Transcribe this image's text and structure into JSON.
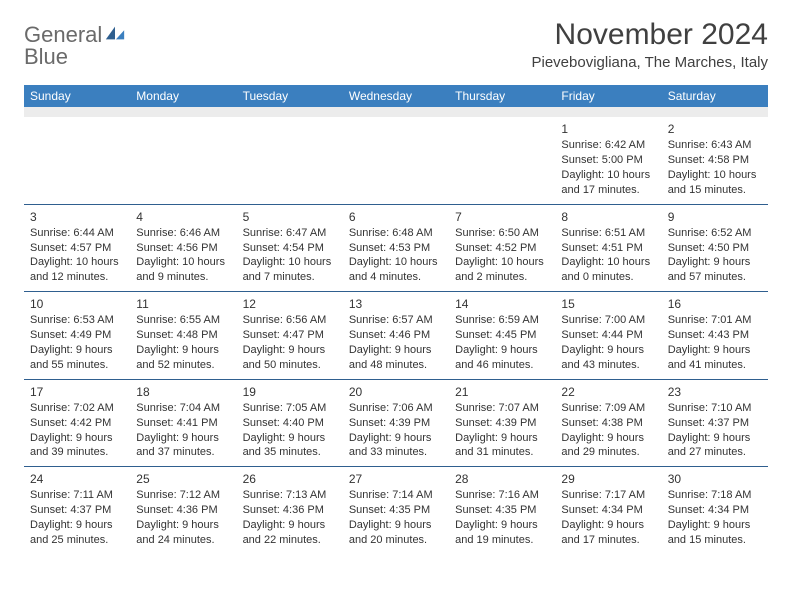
{
  "logo": {
    "text_general": "General",
    "text_blue": "Blue"
  },
  "title": "November 2024",
  "subtitle": "Pievebovigliana, The Marches, Italy",
  "colors": {
    "header_bg": "#3b7fbf",
    "header_text": "#ffffff",
    "cell_border": "#2f5f8f",
    "spacer_bg": "#ececec",
    "body_text": "#333333",
    "title_text": "#404040"
  },
  "day_headers": [
    "Sunday",
    "Monday",
    "Tuesday",
    "Wednesday",
    "Thursday",
    "Friday",
    "Saturday"
  ],
  "weeks": [
    [
      null,
      null,
      null,
      null,
      null,
      {
        "n": "1",
        "sunrise": "Sunrise: 6:42 AM",
        "sunset": "Sunset: 5:00 PM",
        "day1": "Daylight: 10 hours",
        "day2": "and 17 minutes."
      },
      {
        "n": "2",
        "sunrise": "Sunrise: 6:43 AM",
        "sunset": "Sunset: 4:58 PM",
        "day1": "Daylight: 10 hours",
        "day2": "and 15 minutes."
      }
    ],
    [
      {
        "n": "3",
        "sunrise": "Sunrise: 6:44 AM",
        "sunset": "Sunset: 4:57 PM",
        "day1": "Daylight: 10 hours",
        "day2": "and 12 minutes."
      },
      {
        "n": "4",
        "sunrise": "Sunrise: 6:46 AM",
        "sunset": "Sunset: 4:56 PM",
        "day1": "Daylight: 10 hours",
        "day2": "and 9 minutes."
      },
      {
        "n": "5",
        "sunrise": "Sunrise: 6:47 AM",
        "sunset": "Sunset: 4:54 PM",
        "day1": "Daylight: 10 hours",
        "day2": "and 7 minutes."
      },
      {
        "n": "6",
        "sunrise": "Sunrise: 6:48 AM",
        "sunset": "Sunset: 4:53 PM",
        "day1": "Daylight: 10 hours",
        "day2": "and 4 minutes."
      },
      {
        "n": "7",
        "sunrise": "Sunrise: 6:50 AM",
        "sunset": "Sunset: 4:52 PM",
        "day1": "Daylight: 10 hours",
        "day2": "and 2 minutes."
      },
      {
        "n": "8",
        "sunrise": "Sunrise: 6:51 AM",
        "sunset": "Sunset: 4:51 PM",
        "day1": "Daylight: 10 hours",
        "day2": "and 0 minutes."
      },
      {
        "n": "9",
        "sunrise": "Sunrise: 6:52 AM",
        "sunset": "Sunset: 4:50 PM",
        "day1": "Daylight: 9 hours",
        "day2": "and 57 minutes."
      }
    ],
    [
      {
        "n": "10",
        "sunrise": "Sunrise: 6:53 AM",
        "sunset": "Sunset: 4:49 PM",
        "day1": "Daylight: 9 hours",
        "day2": "and 55 minutes."
      },
      {
        "n": "11",
        "sunrise": "Sunrise: 6:55 AM",
        "sunset": "Sunset: 4:48 PM",
        "day1": "Daylight: 9 hours",
        "day2": "and 52 minutes."
      },
      {
        "n": "12",
        "sunrise": "Sunrise: 6:56 AM",
        "sunset": "Sunset: 4:47 PM",
        "day1": "Daylight: 9 hours",
        "day2": "and 50 minutes."
      },
      {
        "n": "13",
        "sunrise": "Sunrise: 6:57 AM",
        "sunset": "Sunset: 4:46 PM",
        "day1": "Daylight: 9 hours",
        "day2": "and 48 minutes."
      },
      {
        "n": "14",
        "sunrise": "Sunrise: 6:59 AM",
        "sunset": "Sunset: 4:45 PM",
        "day1": "Daylight: 9 hours",
        "day2": "and 46 minutes."
      },
      {
        "n": "15",
        "sunrise": "Sunrise: 7:00 AM",
        "sunset": "Sunset: 4:44 PM",
        "day1": "Daylight: 9 hours",
        "day2": "and 43 minutes."
      },
      {
        "n": "16",
        "sunrise": "Sunrise: 7:01 AM",
        "sunset": "Sunset: 4:43 PM",
        "day1": "Daylight: 9 hours",
        "day2": "and 41 minutes."
      }
    ],
    [
      {
        "n": "17",
        "sunrise": "Sunrise: 7:02 AM",
        "sunset": "Sunset: 4:42 PM",
        "day1": "Daylight: 9 hours",
        "day2": "and 39 minutes."
      },
      {
        "n": "18",
        "sunrise": "Sunrise: 7:04 AM",
        "sunset": "Sunset: 4:41 PM",
        "day1": "Daylight: 9 hours",
        "day2": "and 37 minutes."
      },
      {
        "n": "19",
        "sunrise": "Sunrise: 7:05 AM",
        "sunset": "Sunset: 4:40 PM",
        "day1": "Daylight: 9 hours",
        "day2": "and 35 minutes."
      },
      {
        "n": "20",
        "sunrise": "Sunrise: 7:06 AM",
        "sunset": "Sunset: 4:39 PM",
        "day1": "Daylight: 9 hours",
        "day2": "and 33 minutes."
      },
      {
        "n": "21",
        "sunrise": "Sunrise: 7:07 AM",
        "sunset": "Sunset: 4:39 PM",
        "day1": "Daylight: 9 hours",
        "day2": "and 31 minutes."
      },
      {
        "n": "22",
        "sunrise": "Sunrise: 7:09 AM",
        "sunset": "Sunset: 4:38 PM",
        "day1": "Daylight: 9 hours",
        "day2": "and 29 minutes."
      },
      {
        "n": "23",
        "sunrise": "Sunrise: 7:10 AM",
        "sunset": "Sunset: 4:37 PM",
        "day1": "Daylight: 9 hours",
        "day2": "and 27 minutes."
      }
    ],
    [
      {
        "n": "24",
        "sunrise": "Sunrise: 7:11 AM",
        "sunset": "Sunset: 4:37 PM",
        "day1": "Daylight: 9 hours",
        "day2": "and 25 minutes."
      },
      {
        "n": "25",
        "sunrise": "Sunrise: 7:12 AM",
        "sunset": "Sunset: 4:36 PM",
        "day1": "Daylight: 9 hours",
        "day2": "and 24 minutes."
      },
      {
        "n": "26",
        "sunrise": "Sunrise: 7:13 AM",
        "sunset": "Sunset: 4:36 PM",
        "day1": "Daylight: 9 hours",
        "day2": "and 22 minutes."
      },
      {
        "n": "27",
        "sunrise": "Sunrise: 7:14 AM",
        "sunset": "Sunset: 4:35 PM",
        "day1": "Daylight: 9 hours",
        "day2": "and 20 minutes."
      },
      {
        "n": "28",
        "sunrise": "Sunrise: 7:16 AM",
        "sunset": "Sunset: 4:35 PM",
        "day1": "Daylight: 9 hours",
        "day2": "and 19 minutes."
      },
      {
        "n": "29",
        "sunrise": "Sunrise: 7:17 AM",
        "sunset": "Sunset: 4:34 PM",
        "day1": "Daylight: 9 hours",
        "day2": "and 17 minutes."
      },
      {
        "n": "30",
        "sunrise": "Sunrise: 7:18 AM",
        "sunset": "Sunset: 4:34 PM",
        "day1": "Daylight: 9 hours",
        "day2": "and 15 minutes."
      }
    ]
  ]
}
